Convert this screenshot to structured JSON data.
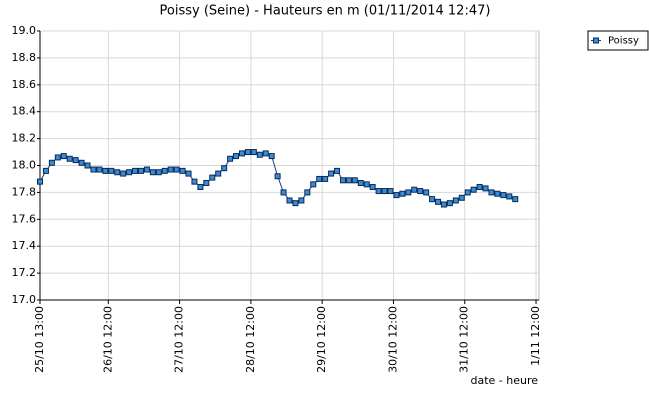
{
  "chart_data": {
    "type": "line",
    "title": "Poissy (Seine) - Hauteurs en m (01/11/2014 12:47)",
    "x_label": "date - heure",
    "legend": "outside-right",
    "grid": true,
    "xlim": [
      0,
      168
    ],
    "xticks": [
      {
        "value": 0,
        "label": "25/10 13:00"
      },
      {
        "value": 23,
        "label": "26/10 12:00"
      },
      {
        "value": 47,
        "label": "27/10 12:00"
      },
      {
        "value": 71,
        "label": "28/10 12:00"
      },
      {
        "value": 95,
        "label": "29/10 12:00"
      },
      {
        "value": 119,
        "label": "30/10 12:00"
      },
      {
        "value": 143,
        "label": "31/10 12:00"
      },
      {
        "value": 167,
        "label": "1/11 12:00"
      }
    ],
    "ylim": [
      17.0,
      19.0
    ],
    "yticks": [
      {
        "value": 17,
        "label": "17.0"
      },
      17.2,
      17.4,
      17.6,
      17.8,
      {
        "value": 18,
        "label": "18.0"
      },
      18.2,
      18.4,
      18.6,
      18.8,
      {
        "value": 19,
        "label": "19.0"
      }
    ],
    "x": [
      0,
      2,
      4,
      6,
      8,
      10,
      12,
      14,
      16,
      18,
      20,
      22,
      24,
      26,
      28,
      30,
      32,
      34,
      36,
      38,
      40,
      42,
      44,
      46,
      48,
      50,
      52,
      54,
      56,
      58,
      60,
      62,
      64,
      66,
      68,
      70,
      72,
      74,
      76,
      78,
      80,
      82,
      84,
      86,
      88,
      90,
      92,
      94,
      96,
      98,
      100,
      102,
      104,
      106,
      108,
      110,
      112,
      114,
      116,
      118,
      120,
      122,
      124,
      126,
      128,
      130,
      132,
      134,
      136,
      138,
      140,
      142,
      144,
      146,
      148,
      150,
      152,
      154,
      156,
      158,
      160
    ],
    "series": [
      {
        "name": "Poissy",
        "color": "#3a8ad8",
        "values": [
          17.88,
          17.96,
          18.02,
          18.06,
          18.07,
          18.05,
          18.04,
          18.02,
          18.0,
          17.97,
          17.97,
          17.96,
          17.96,
          17.95,
          17.94,
          17.95,
          17.96,
          17.96,
          17.97,
          17.95,
          17.95,
          17.96,
          17.97,
          17.97,
          17.96,
          17.94,
          17.88,
          17.84,
          17.87,
          17.91,
          17.94,
          17.98,
          18.05,
          18.07,
          18.09,
          18.1,
          18.1,
          18.08,
          18.09,
          18.07,
          17.92,
          17.8,
          17.74,
          17.72,
          17.74,
          17.8,
          17.86,
          17.9,
          17.9,
          17.94,
          17.96,
          17.89,
          17.89,
          17.89,
          17.87,
          17.86,
          17.84,
          17.81,
          17.81,
          17.81,
          17.78,
          17.79,
          17.8,
          17.82,
          17.81,
          17.8,
          17.75,
          17.73,
          17.71,
          17.72,
          17.74,
          17.76,
          17.8,
          17.82,
          17.84,
          17.83,
          17.8,
          17.79,
          17.78,
          17.77,
          17.75
        ]
      }
    ]
  }
}
